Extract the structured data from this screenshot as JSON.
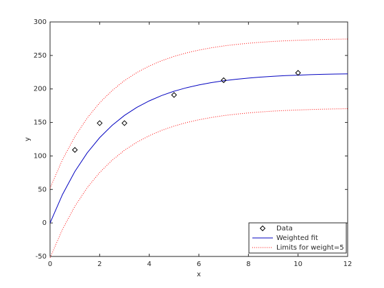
{
  "chart_data": {
    "type": "line",
    "xlabel": "x",
    "ylabel": "y",
    "xlim": [
      0,
      12
    ],
    "xticks": [
      0,
      2,
      4,
      6,
      8,
      10,
      12
    ],
    "ylim": [
      -50,
      300
    ],
    "yticks": [
      -50,
      0,
      50,
      100,
      150,
      200,
      250,
      300
    ],
    "legend": "bottom-right",
    "points": {
      "name": "Data",
      "color": "#000000",
      "marker": "diamond",
      "x": [
        1,
        2,
        3,
        5,
        7,
        10
      ],
      "values": [
        109,
        149,
        149,
        191,
        213,
        224
      ]
    },
    "x": [
      0,
      0.5,
      1,
      1.5,
      2,
      2.5,
      3,
      3.5,
      4,
      4.5,
      5,
      5.5,
      6,
      6.5,
      7,
      7.5,
      8,
      8.5,
      9,
      9.5,
      10,
      10.5,
      11,
      11.5,
      12
    ],
    "fit": {
      "name": "Weighted fit",
      "color": "#0000c0",
      "values": [
        0,
        42.4,
        76.8,
        104.7,
        127.3,
        145.6,
        160.5,
        172.5,
        182.2,
        190.2,
        196.6,
        201.8,
        206.0,
        209.4,
        212.2,
        214.4,
        216.2,
        217.7,
        218.9,
        219.9,
        220.6,
        221.3,
        221.8,
        222.2,
        222.5
      ]
    },
    "limits": {
      "name": "Limits for weight=5",
      "color": "#ff0000",
      "upper": [
        52,
        94.4,
        128.8,
        156.7,
        179.3,
        197.6,
        212.5,
        224.5,
        234.2,
        242.2,
        248.6,
        253.8,
        258.0,
        261.4,
        264.2,
        266.4,
        268.2,
        269.7,
        270.9,
        271.9,
        272.6,
        273.3,
        273.8,
        274.2,
        274.5
      ],
      "lower": [
        -52,
        -9.6,
        24.8,
        52.7,
        75.3,
        93.6,
        108.5,
        120.5,
        130.2,
        138.2,
        144.6,
        149.8,
        154.0,
        157.4,
        160.2,
        162.4,
        164.2,
        165.7,
        166.9,
        167.9,
        168.6,
        169.3,
        169.8,
        170.2,
        170.5
      ]
    }
  }
}
